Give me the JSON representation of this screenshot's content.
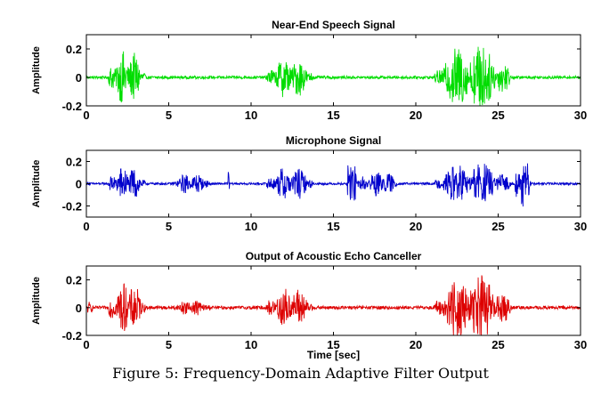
{
  "caption": "Figure 5: Frequency-Domain Adaptive Filter Output",
  "chart_data": [
    {
      "type": "line",
      "title": "Near-End Speech Signal",
      "ylabel": "Amplitude",
      "xlabel": "",
      "xlim": [
        0,
        30
      ],
      "ylim": [
        -0.2,
        0.3
      ],
      "xticks": [
        0,
        5,
        10,
        15,
        20,
        25,
        30
      ],
      "yticks": [
        -0.2,
        0,
        0.2
      ],
      "ytick_labels": [
        "-0.2",
        "0",
        "0.2"
      ],
      "color": "#00dd00",
      "grid": false,
      "bursts": [
        {
          "start": 1.3,
          "end": 3.6,
          "peak": 0.2
        },
        {
          "start": 10.9,
          "end": 13.8,
          "peak": 0.15
        },
        {
          "start": 21.1,
          "end": 25.8,
          "peak": 0.25
        }
      ],
      "noise_level": 0.01
    },
    {
      "type": "line",
      "title": "Microphone Signal",
      "ylabel": "Amplitude",
      "xlabel": "",
      "xlim": [
        0,
        30
      ],
      "ylim": [
        -0.3,
        0.3
      ],
      "xticks": [
        0,
        5,
        10,
        15,
        20,
        25,
        30
      ],
      "yticks": [
        -0.2,
        0,
        0.2
      ],
      "ytick_labels": [
        "-0.2",
        "0",
        "0.2"
      ],
      "color": "#0000cc",
      "grid": false,
      "bursts": [
        {
          "start": 1.3,
          "end": 3.6,
          "peak": 0.17
        },
        {
          "start": 5.2,
          "end": 7.6,
          "peak": 0.1
        },
        {
          "start": 8.6,
          "end": 8.7,
          "peak": 0.28
        },
        {
          "start": 10.9,
          "end": 13.8,
          "peak": 0.16
        },
        {
          "start": 15.8,
          "end": 16.4,
          "peak": 0.3
        },
        {
          "start": 16.4,
          "end": 19.0,
          "peak": 0.12
        },
        {
          "start": 21.1,
          "end": 25.8,
          "peak": 0.2
        },
        {
          "start": 26.0,
          "end": 27.0,
          "peak": 0.25
        }
      ],
      "noise_level": 0.01
    },
    {
      "type": "line",
      "title": "Output of Acoustic Echo Canceller",
      "ylabel": "Amplitude",
      "xlabel": "Time [sec]",
      "xlim": [
        0,
        30
      ],
      "ylim": [
        -0.2,
        0.3
      ],
      "xticks": [
        0,
        5,
        10,
        15,
        20,
        25,
        30
      ],
      "yticks": [
        -0.2,
        0,
        0.2
      ],
      "ytick_labels": [
        "-0.2",
        "0",
        "0.2"
      ],
      "color": "#dd0000",
      "grid": false,
      "bursts": [
        {
          "start": 0.0,
          "end": 0.4,
          "peak": 0.06
        },
        {
          "start": 1.3,
          "end": 3.6,
          "peak": 0.2
        },
        {
          "start": 5.2,
          "end": 7.6,
          "peak": 0.06
        },
        {
          "start": 10.9,
          "end": 13.8,
          "peak": 0.16
        },
        {
          "start": 21.1,
          "end": 25.8,
          "peak": 0.25
        }
      ],
      "noise_level": 0.012
    }
  ]
}
